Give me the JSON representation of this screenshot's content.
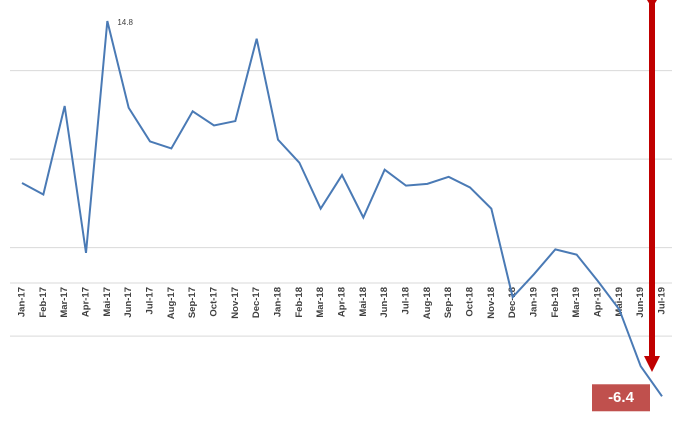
{
  "chart_data": {
    "type": "line",
    "categories": [
      "Jan-17",
      "Feb-17",
      "Mar-17",
      "Apr-17",
      "Mai-17",
      "Jun-17",
      "Jul-17",
      "Aug-17",
      "Sep-17",
      "Oct-17",
      "Nov-17",
      "Dec-17",
      "Jan-18",
      "Feb-18",
      "Mar-18",
      "Apr-18",
      "Mai-18",
      "Jun-18",
      "Jul-18",
      "Aug-18",
      "Sep-18",
      "Oct-18",
      "Nov-18",
      "Dec-18",
      "Jan-19",
      "Feb-19",
      "Mar-19",
      "Apr-19",
      "Mai-19",
      "Jun-19",
      "Jul-19"
    ],
    "values": [
      5.65,
      5.0,
      10.0,
      1.7,
      14.8,
      9.9,
      8.0,
      7.6,
      9.7,
      8.9,
      9.15,
      13.8,
      8.1,
      6.8,
      4.2,
      6.1,
      3.7,
      6.4,
      5.5,
      5.6,
      6.0,
      5.4,
      4.2,
      -0.8,
      0.5,
      1.9,
      1.6,
      0.1,
      -1.5,
      -4.7,
      -6.4
    ],
    "value_labels": [
      null,
      null,
      null,
      null,
      "14.8",
      null,
      null,
      null,
      null,
      null,
      null,
      null,
      null,
      null,
      null,
      null,
      null,
      null,
      null,
      null,
      null,
      null,
      null,
      null,
      null,
      null,
      null,
      null,
      null,
      null,
      "-6.4"
    ],
    "color": "#4a7ab5",
    "ylim": [
      -7,
      15.5
    ],
    "yticks": [
      -3,
      2,
      7,
      12
    ],
    "grid": true
  }
}
